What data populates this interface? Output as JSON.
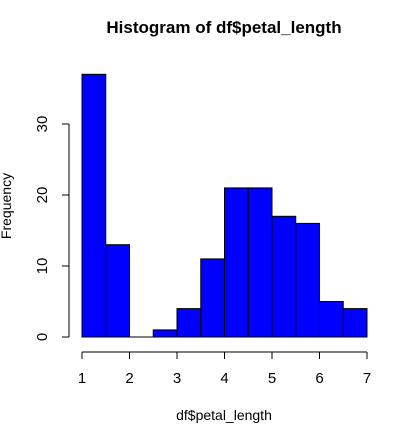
{
  "chart_data": {
    "type": "bar",
    "title": "Histogram of df$petal_length",
    "xlabel": "df$petal_length",
    "ylabel": "Frequency",
    "bin_edges": [
      1.0,
      1.5,
      2.0,
      2.5,
      3.0,
      3.5,
      4.0,
      4.5,
      5.0,
      5.5,
      6.0,
      6.5,
      7.0
    ],
    "values": [
      37,
      13,
      0,
      1,
      4,
      11,
      21,
      21,
      17,
      16,
      5,
      4
    ],
    "x_ticks": [
      "1",
      "2",
      "3",
      "4",
      "5",
      "6",
      "7"
    ],
    "y_ticks": [
      "0",
      "10",
      "20",
      "30"
    ],
    "xlim": [
      1,
      7
    ],
    "ylim": [
      0,
      37
    ],
    "grid": false,
    "bar_color": "#0000ff",
    "bar_border_color": "#000000"
  }
}
